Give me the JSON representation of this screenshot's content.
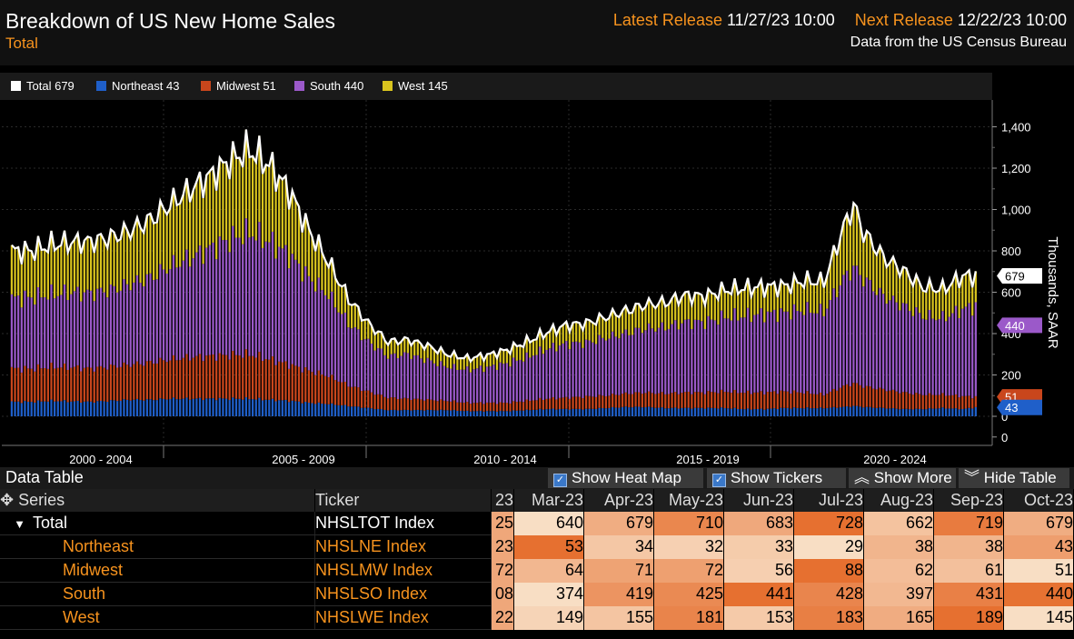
{
  "header": {
    "title": "Breakdown of US New Home Sales",
    "subtitle": "Total",
    "latest_release_label": "Latest Release",
    "latest_release_value": "11/27/23 10:00",
    "next_release_label": "Next Release",
    "next_release_value": "12/22/23 10:00",
    "source": "Data from the US Census Bureau"
  },
  "legend": [
    {
      "label": "Total",
      "value": "679",
      "color": "#ffffff"
    },
    {
      "label": "Northeast",
      "value": "43",
      "color": "#1f5fc9"
    },
    {
      "label": "Midwest",
      "value": "51",
      "color": "#c9461c"
    },
    {
      "label": "South",
      "value": "440",
      "color": "#9b59c9"
    },
    {
      "label": "West",
      "value": "145",
      "color": "#d9c41e"
    }
  ],
  "chart_data": {
    "type": "bar",
    "stacked": true,
    "ylabel": "Thousands, SAAR",
    "ylim": [
      -100,
      1500
    ],
    "yticks": [
      0,
      200,
      400,
      600,
      800,
      1000,
      1200,
      1400
    ],
    "ytick_labels": [
      "0",
      "200",
      "400",
      "600",
      "800",
      "1,000",
      "1,200",
      "1,400"
    ],
    "x_period_labels": [
      "2000 - 2004",
      "2005 - 2009",
      "2010 - 2014",
      "2015 - 2019",
      "2020 - 2024"
    ],
    "x": [
      1999.5,
      2000.0,
      2000.5,
      2001.0,
      2001.5,
      2002.0,
      2002.5,
      2003.0,
      2003.5,
      2004.0,
      2004.5,
      2005.0,
      2005.5,
      2006.0,
      2006.5,
      2007.0,
      2007.5,
      2008.0,
      2008.5,
      2009.0,
      2009.5,
      2010.0,
      2010.5,
      2011.0,
      2011.5,
      2012.0,
      2012.5,
      2013.0,
      2013.5,
      2014.0,
      2014.5,
      2015.0,
      2015.5,
      2016.0,
      2016.5,
      2017.0,
      2017.5,
      2018.0,
      2018.5,
      2019.0,
      2019.5,
      2020.0,
      2020.5,
      2020.75,
      2021.0,
      2021.5,
      2022.0,
      2022.5,
      2023.0,
      2023.5,
      2023.83
    ],
    "series": [
      {
        "name": "Northeast",
        "color": "#1f5fc9",
        "values": [
          70,
          70,
          75,
          72,
          70,
          75,
          80,
          80,
          85,
          85,
          85,
          85,
          85,
          80,
          75,
          65,
          60,
          50,
          40,
          30,
          30,
          30,
          30,
          25,
          25,
          25,
          30,
          35,
          35,
          35,
          40,
          45,
          45,
          40,
          40,
          40,
          40,
          35,
          35,
          40,
          40,
          40,
          45,
          50,
          45,
          40,
          35,
          35,
          40,
          35,
          43
        ]
      },
      {
        "name": "Midwest",
        "color": "#c9461c",
        "values": [
          160,
          160,
          165,
          165,
          160,
          165,
          170,
          180,
          190,
          200,
          205,
          210,
          215,
          195,
          175,
          155,
          135,
          100,
          80,
          60,
          55,
          50,
          45,
          40,
          40,
          40,
          45,
          50,
          55,
          60,
          60,
          65,
          70,
          70,
          75,
          75,
          80,
          80,
          80,
          80,
          75,
          65,
          100,
          110,
          100,
          90,
          80,
          70,
          65,
          62,
          51
        ]
      },
      {
        "name": "South",
        "color": "#9b59c9",
        "values": [
          340,
          345,
          350,
          360,
          365,
          370,
          390,
          410,
          450,
          480,
          520,
          560,
          590,
          570,
          530,
          450,
          390,
          300,
          240,
          200,
          215,
          190,
          165,
          160,
          170,
          190,
          210,
          240,
          260,
          260,
          280,
          290,
          310,
          320,
          340,
          340,
          360,
          370,
          380,
          380,
          400,
          400,
          520,
          560,
          520,
          450,
          420,
          380,
          370,
          420,
          440
        ]
      },
      {
        "name": "West",
        "color": "#d9c41e",
        "values": [
          230,
          225,
          240,
          245,
          250,
          255,
          260,
          280,
          300,
          330,
          350,
          380,
          400,
          370,
          310,
          230,
          160,
          120,
          90,
          70,
          70,
          70,
          60,
          55,
          60,
          65,
          75,
          80,
          90,
          95,
          100,
          110,
          115,
          120,
          130,
          125,
          130,
          135,
          130,
          130,
          140,
          145,
          250,
          300,
          225,
          190,
          170,
          140,
          140,
          160,
          145
        ]
      }
    ],
    "total": {
      "name": "Total",
      "color": "#ffffff",
      "values": [
        800,
        800,
        830,
        842,
        845,
        865,
        900,
        950,
        1025,
        1095,
        1160,
        1235,
        1290,
        1215,
        1090,
        900,
        745,
        570,
        450,
        360,
        370,
        340,
        300,
        280,
        295,
        320,
        360,
        405,
        440,
        450,
        480,
        510,
        540,
        550,
        585,
        580,
        610,
        620,
        625,
        630,
        655,
        650,
        915,
        1020,
        890,
        770,
        705,
        625,
        615,
        677,
        679
      ]
    },
    "end_labels": [
      {
        "value": "679",
        "y": 679,
        "bg": "#ffffff",
        "fg": "#000000"
      },
      {
        "value": "440",
        "y": 440,
        "bg": "#9b59c9",
        "fg": "#ffffff"
      },
      {
        "value": "51",
        "y": 94,
        "bg": "#c9461c",
        "fg": "#ffffff"
      },
      {
        "value": "43",
        "y": 43,
        "bg": "#1f5fc9",
        "fg": "#ffffff"
      }
    ]
  },
  "data_table": {
    "title": "Data Table",
    "buttons": {
      "heat_map": "Show Heat Map",
      "tickers": "Show Tickers",
      "more": "Show More",
      "hide": "Hide Table"
    },
    "col_series": "Series",
    "col_ticker": "Ticker",
    "cut_header": "23",
    "months": [
      "Mar-23",
      "Apr-23",
      "May-23",
      "Jun-23",
      "Jul-23",
      "Aug-23",
      "Sep-23",
      "Oct-23"
    ],
    "rows": [
      {
        "series": "Total",
        "ticker": "NHSLTOT Index",
        "cut": "25",
        "values": [
          "640",
          "679",
          "710",
          "683",
          "728",
          "662",
          "719",
          "679"
        ],
        "top": true
      },
      {
        "series": "Northeast",
        "ticker": "NHSLNE Index",
        "cut": "23",
        "values": [
          "53",
          "34",
          "32",
          "33",
          "29",
          "38",
          "38",
          "43"
        ]
      },
      {
        "series": "Midwest",
        "ticker": "NHSLMW Index",
        "cut": "72",
        "values": [
          "64",
          "71",
          "72",
          "56",
          "88",
          "62",
          "61",
          "51"
        ]
      },
      {
        "series": "South",
        "ticker": "NHSLSO Index",
        "cut": "08",
        "values": [
          "374",
          "419",
          "425",
          "441",
          "428",
          "397",
          "431",
          "440"
        ]
      },
      {
        "series": "West",
        "ticker": "NHSLWE Index",
        "cut": "22",
        "values": [
          "149",
          "155",
          "181",
          "153",
          "183",
          "165",
          "189",
          "145"
        ]
      }
    ]
  }
}
